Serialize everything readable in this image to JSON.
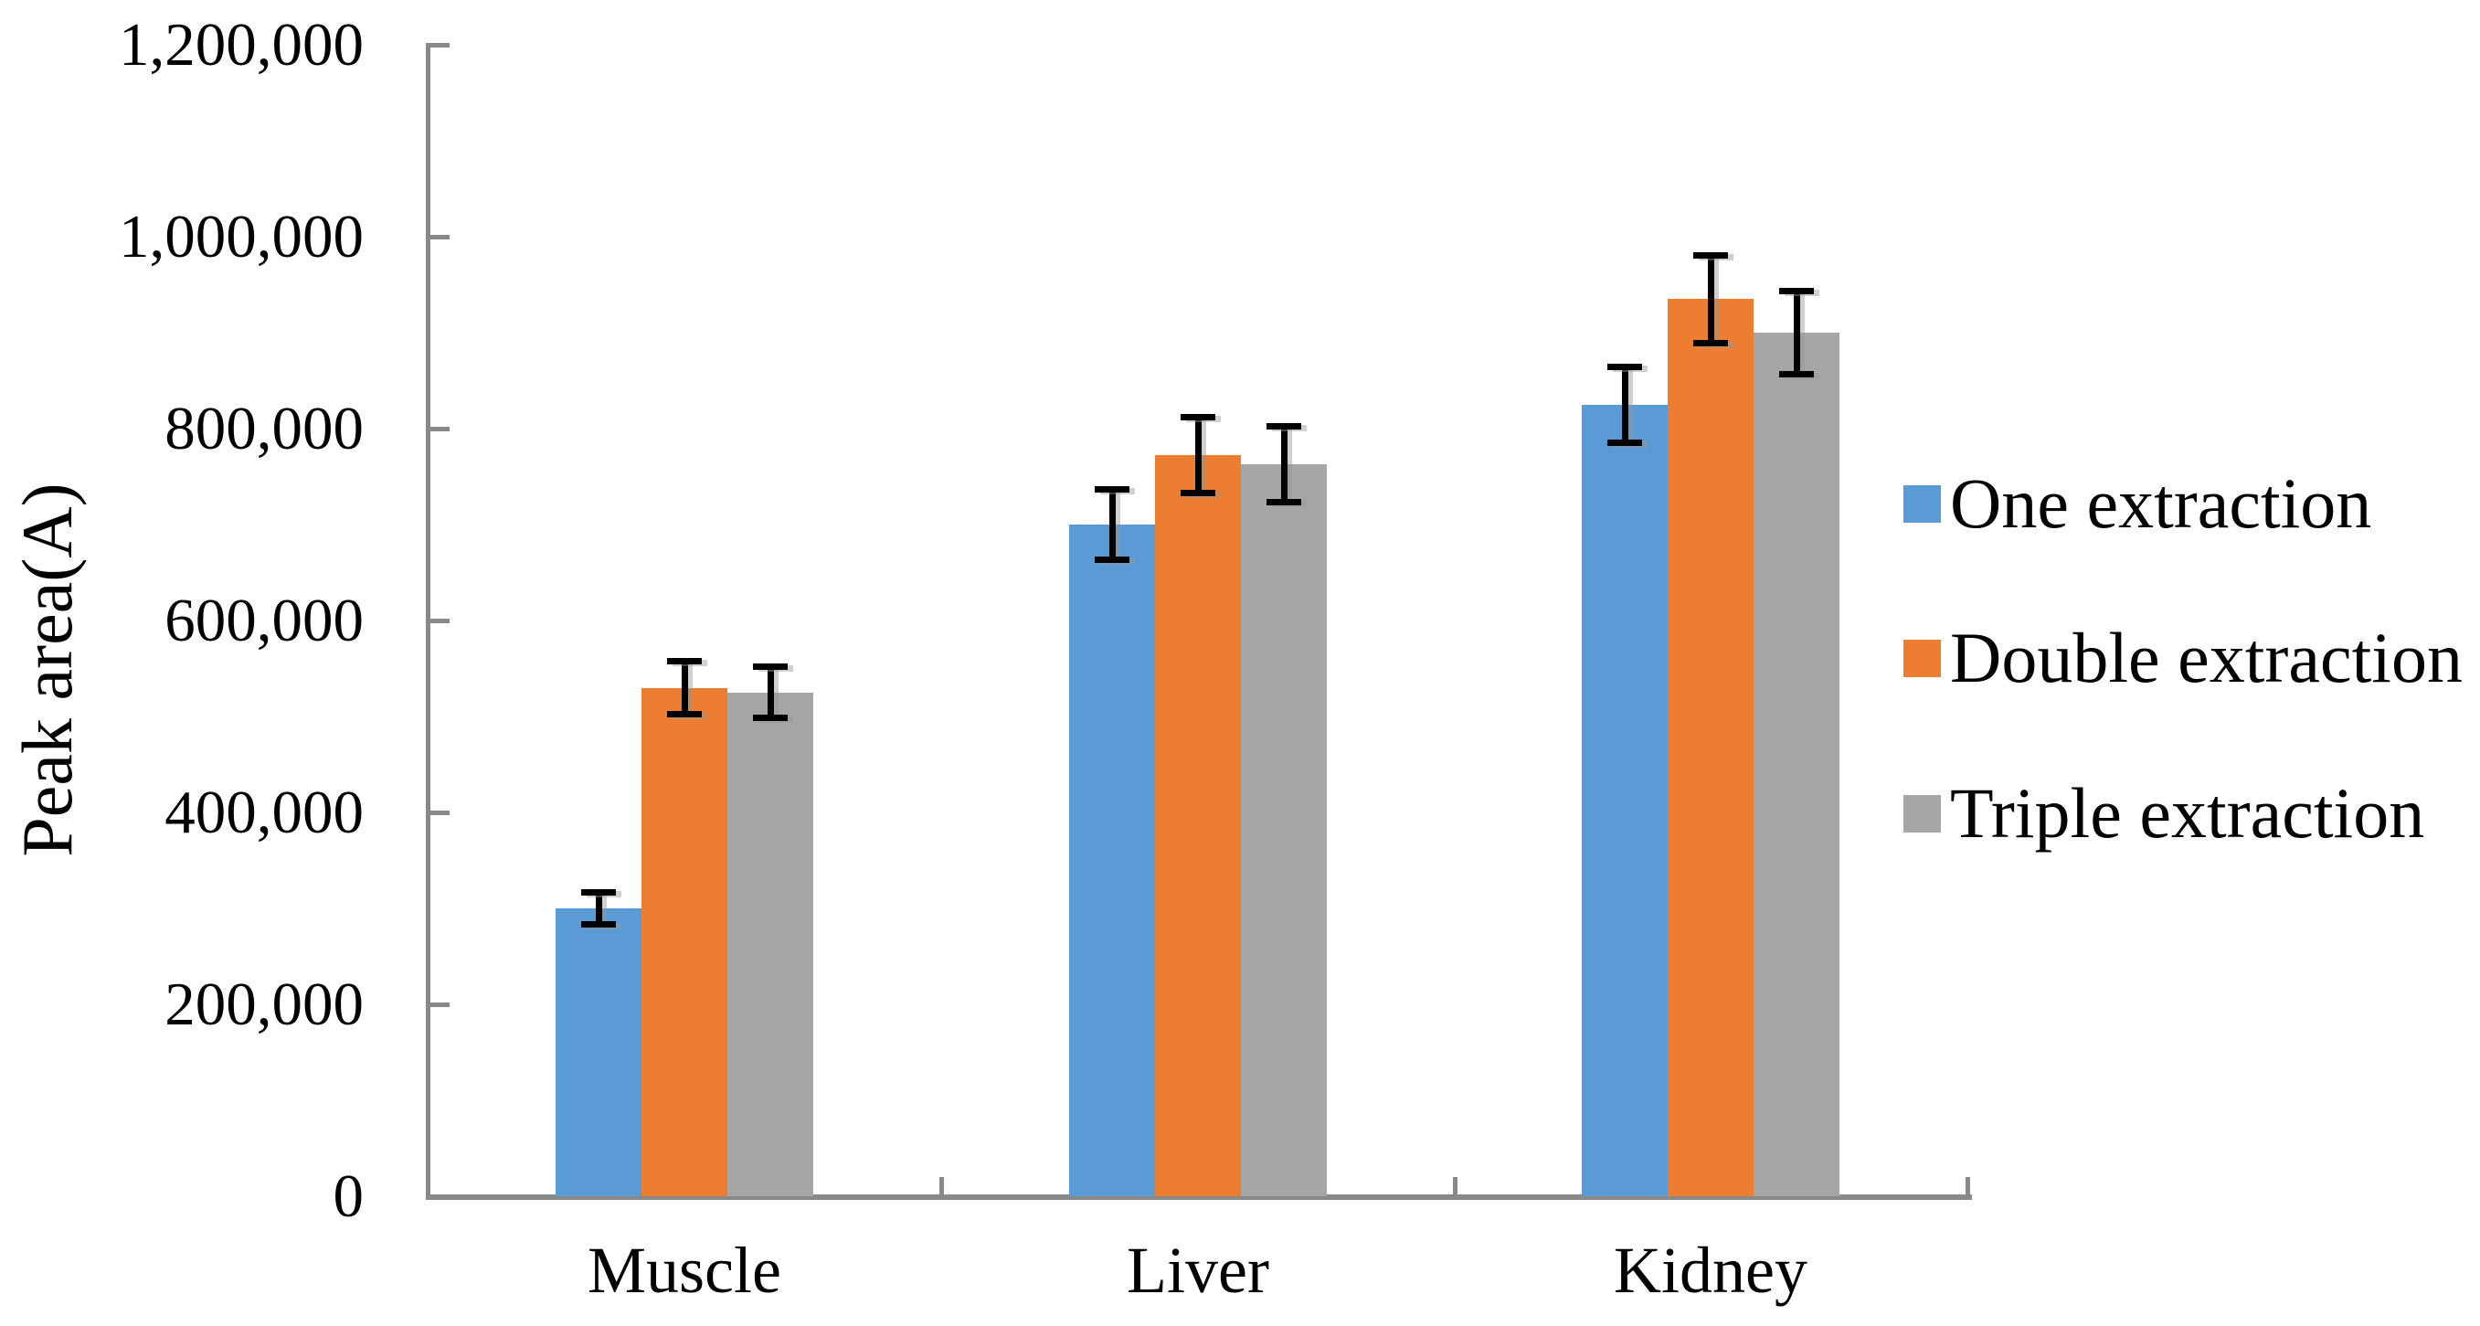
{
  "chart_data": {
    "type": "bar",
    "title": "",
    "ylabel": "Peak area(A)",
    "xlabel": "",
    "categories": [
      "Muscle",
      "Liver",
      "Kidney"
    ],
    "series": [
      {
        "name": "One extraction",
        "color": "#5B9BD5",
        "values": [
          300000,
          700000,
          825000
        ],
        "errors": [
          17000,
          37000,
          40000
        ]
      },
      {
        "name": "Double extraction",
        "color": "#ED7D31",
        "values": [
          530000,
          772000,
          935000
        ],
        "errors": [
          28000,
          40000,
          46000
        ]
      },
      {
        "name": "Triple extraction",
        "color": "#A6A6A6",
        "values": [
          525000,
          763000,
          900000
        ],
        "errors": [
          27000,
          40000,
          44000
        ]
      }
    ],
    "ylim": [
      0,
      1200000
    ],
    "ytick_step": 200000,
    "ytick_labels": [
      "0",
      "200,000",
      "400,000",
      "600,000",
      "800,000",
      "1,000,000",
      "1,200,000"
    ],
    "grid": false,
    "legend_position": "right",
    "error_bars": true
  },
  "colors": {
    "axis": "#898989",
    "error_bar": "#000000",
    "text": "#000000",
    "background": "#FFFFFF"
  }
}
